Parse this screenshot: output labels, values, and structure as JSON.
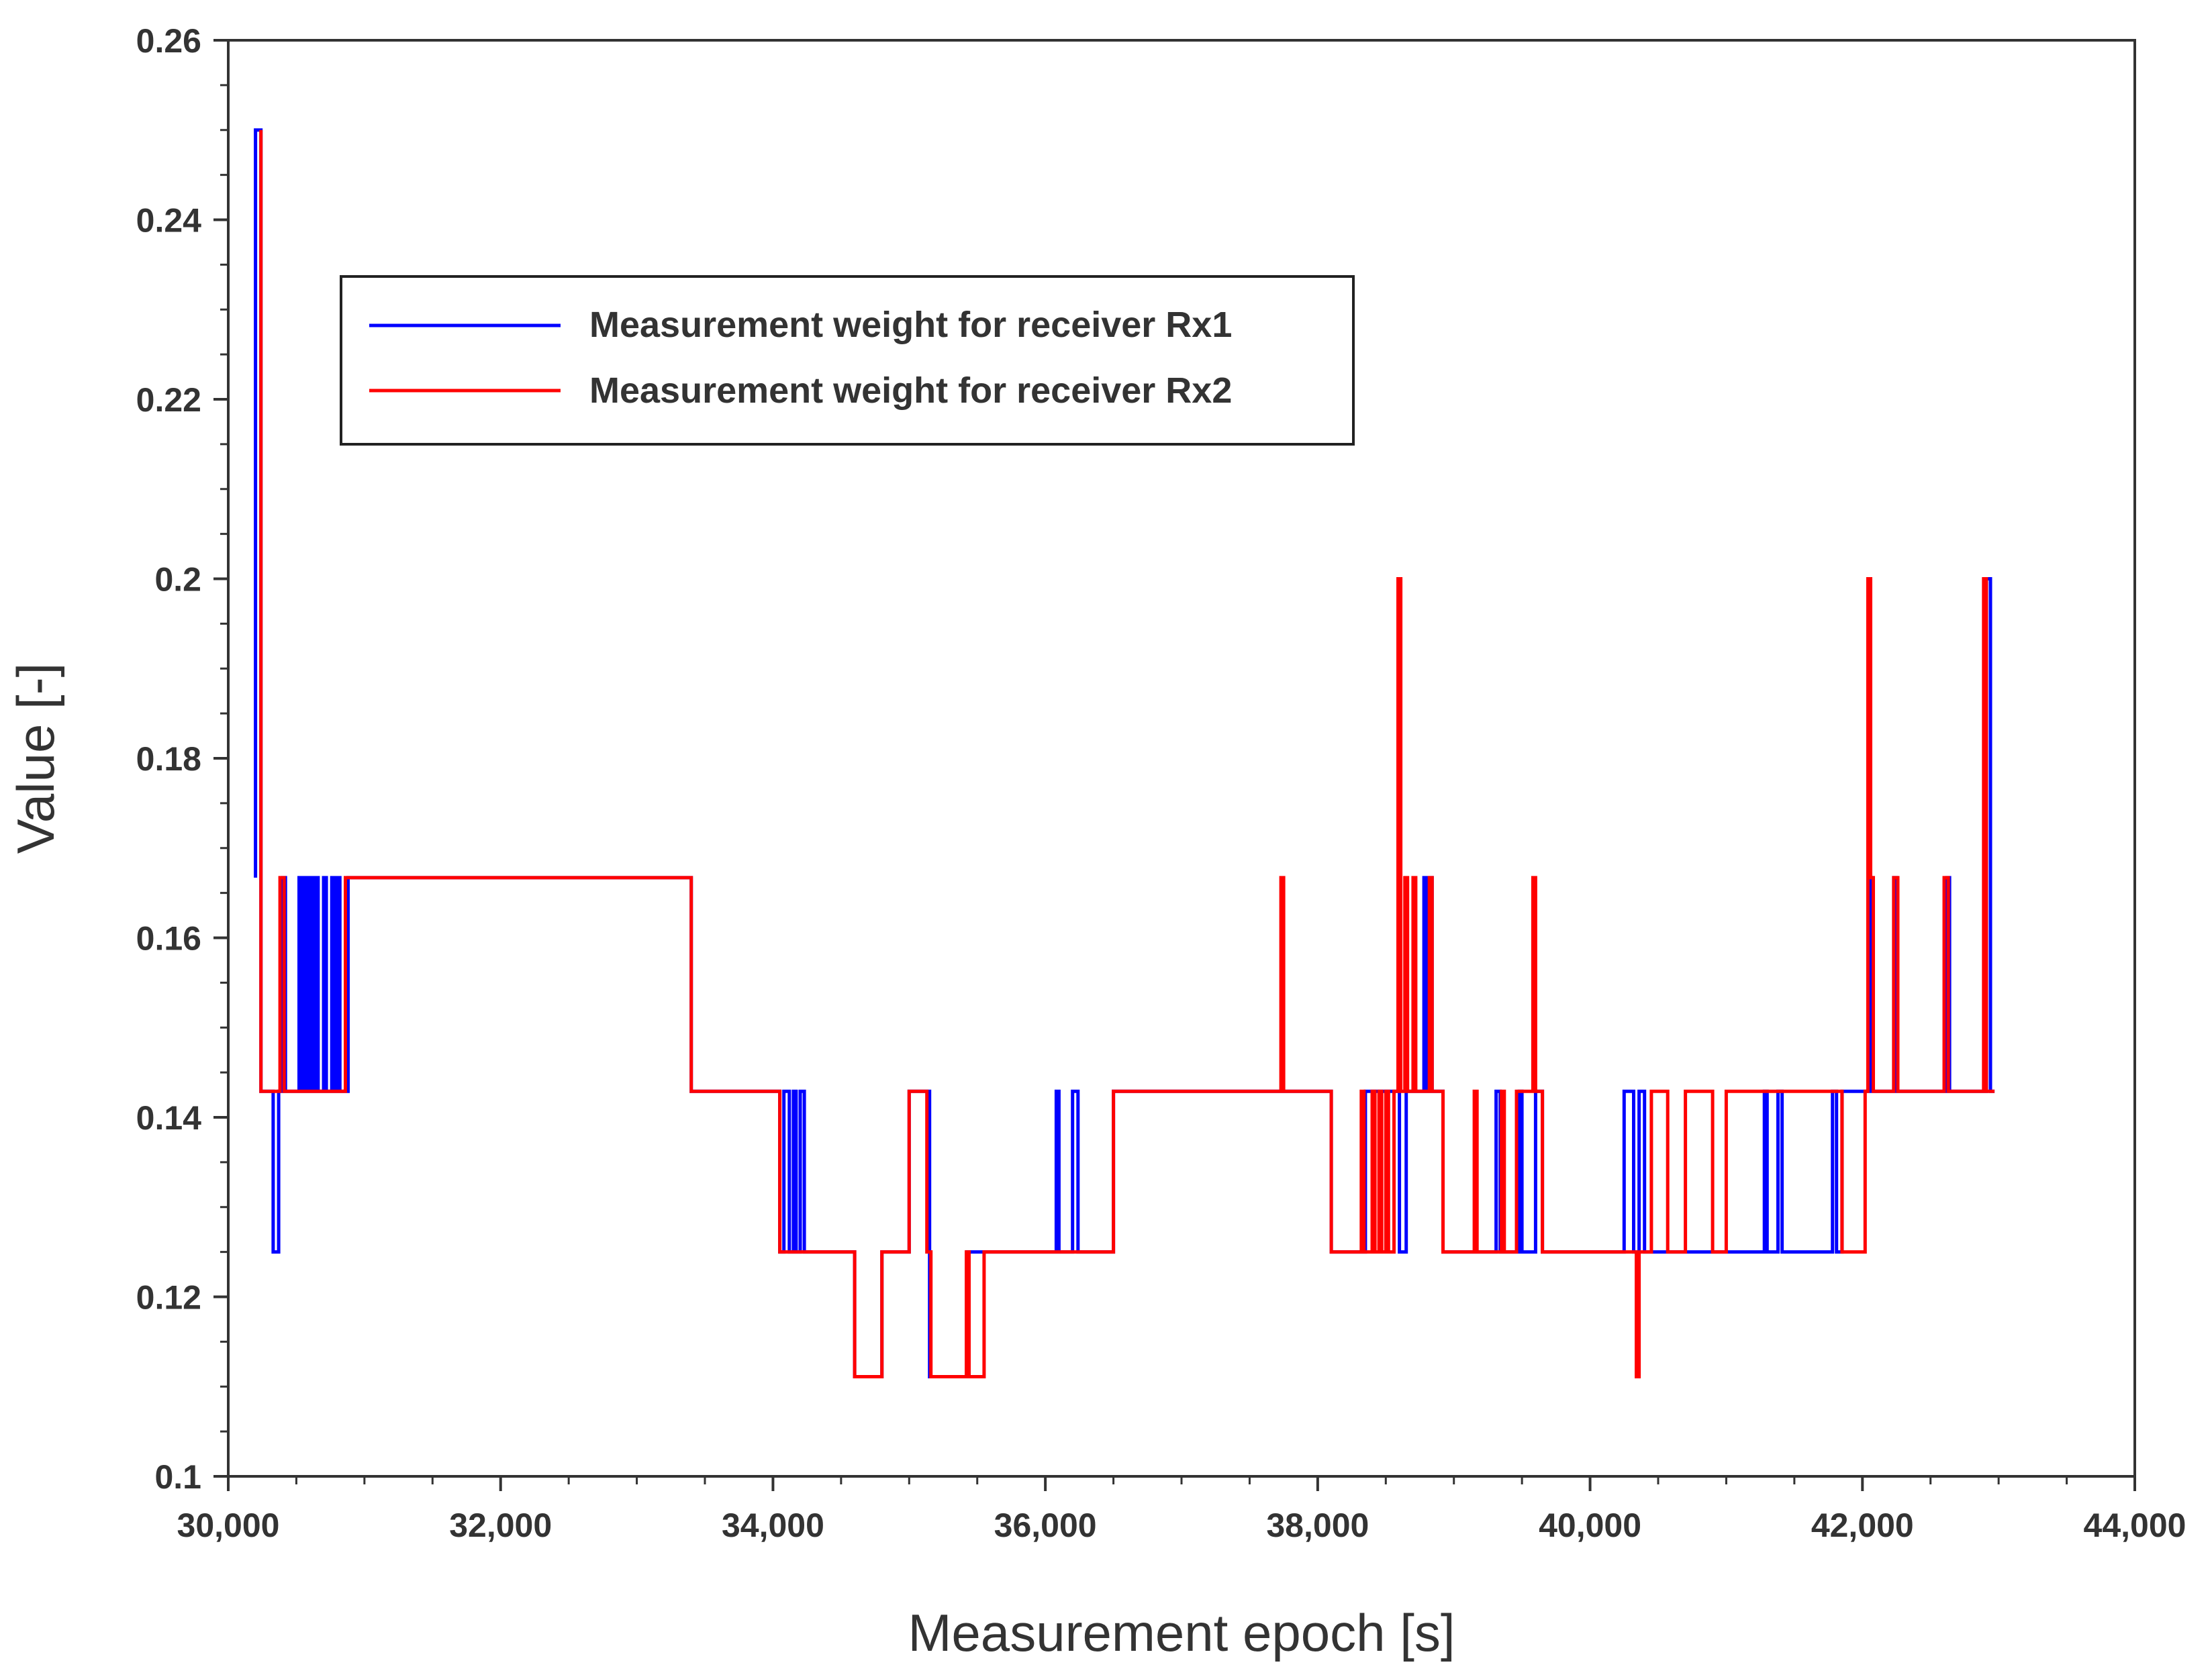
{
  "chart_data": {
    "type": "line",
    "title": "",
    "xlabel": "Measurement epoch [s]",
    "ylabel": "Value [-]",
    "xlim": [
      30000,
      44000
    ],
    "ylim": [
      0.1,
      0.26
    ],
    "x_ticks": [
      30000,
      32000,
      34000,
      36000,
      38000,
      40000,
      42000,
      44000
    ],
    "x_tick_labels": [
      "30,000",
      "32,000",
      "34,000",
      "36,000",
      "38,000",
      "40,000",
      "42,000",
      "44,000"
    ],
    "y_ticks": [
      0.1,
      0.12,
      0.14,
      0.16,
      0.18,
      0.2,
      0.22,
      0.24,
      0.26
    ],
    "y_tick_labels": [
      "0.1",
      "0.12",
      "0.14",
      "0.16",
      "0.18",
      "0.2",
      "0.22",
      "0.24",
      "0.26"
    ],
    "grid": false,
    "legend_position": "upper-left",
    "series": [
      {
        "name": "Measurement weight for receiver Rx1",
        "color": "#0000ff",
        "points": [
          [
            30200,
            0.1667
          ],
          [
            30200,
            0.25
          ],
          [
            30240,
            0.25
          ],
          [
            30240,
            0.1429
          ],
          [
            30330,
            0.1429
          ],
          [
            30330,
            0.125
          ],
          [
            30370,
            0.125
          ],
          [
            30370,
            0.1429
          ],
          [
            30400,
            0.1429
          ],
          [
            30400,
            0.1667
          ],
          [
            30420,
            0.1667
          ],
          [
            30420,
            0.1429
          ],
          [
            30520,
            0.1429
          ],
          [
            30520,
            0.1667
          ],
          [
            30540,
            0.1667
          ],
          [
            30540,
            0.1429
          ],
          [
            30560,
            0.1429
          ],
          [
            30560,
            0.1667
          ],
          [
            30580,
            0.1667
          ],
          [
            30580,
            0.1429
          ],
          [
            30600,
            0.1429
          ],
          [
            30600,
            0.1667
          ],
          [
            30620,
            0.1667
          ],
          [
            30620,
            0.1429
          ],
          [
            30640,
            0.1429
          ],
          [
            30640,
            0.1667
          ],
          [
            30660,
            0.1667
          ],
          [
            30660,
            0.1429
          ],
          [
            30700,
            0.1429
          ],
          [
            30700,
            0.1667
          ],
          [
            30720,
            0.1667
          ],
          [
            30720,
            0.1429
          ],
          [
            30760,
            0.1429
          ],
          [
            30760,
            0.1667
          ],
          [
            30780,
            0.1667
          ],
          [
            30780,
            0.1429
          ],
          [
            30800,
            0.1429
          ],
          [
            30800,
            0.1667
          ],
          [
            30820,
            0.1667
          ],
          [
            30820,
            0.1429
          ],
          [
            30880,
            0.1429
          ],
          [
            30880,
            0.1667
          ],
          [
            33400,
            0.1667
          ],
          [
            33400,
            0.1429
          ],
          [
            34050,
            0.1429
          ],
          [
            34050,
            0.125
          ],
          [
            34080,
            0.125
          ],
          [
            34080,
            0.1429
          ],
          [
            34120,
            0.1429
          ],
          [
            34120,
            0.125
          ],
          [
            34150,
            0.125
          ],
          [
            34150,
            0.1429
          ],
          [
            34170,
            0.1429
          ],
          [
            34170,
            0.125
          ],
          [
            34200,
            0.125
          ],
          [
            34200,
            0.1429
          ],
          [
            34230,
            0.1429
          ],
          [
            34230,
            0.125
          ],
          [
            34600,
            0.125
          ],
          [
            34600,
            0.1111
          ],
          [
            34800,
            0.1111
          ],
          [
            34800,
            0.125
          ],
          [
            35000,
            0.125
          ],
          [
            35000,
            0.1429
          ],
          [
            35150,
            0.1429
          ],
          [
            35150,
            0.1111
          ],
          [
            35430,
            0.1111
          ],
          [
            35430,
            0.125
          ],
          [
            36080,
            0.125
          ],
          [
            36080,
            0.1429
          ],
          [
            36100,
            0.1429
          ],
          [
            36100,
            0.125
          ],
          [
            36200,
            0.125
          ],
          [
            36200,
            0.1429
          ],
          [
            36240,
            0.1429
          ],
          [
            36240,
            0.125
          ],
          [
            36500,
            0.125
          ],
          [
            36500,
            0.1429
          ],
          [
            38100,
            0.1429
          ],
          [
            38100,
            0.125
          ],
          [
            38350,
            0.125
          ],
          [
            38350,
            0.1429
          ],
          [
            38600,
            0.1429
          ],
          [
            38600,
            0.125
          ],
          [
            38650,
            0.125
          ],
          [
            38650,
            0.1429
          ],
          [
            38780,
            0.1429
          ],
          [
            38780,
            0.1667
          ],
          [
            38800,
            0.1667
          ],
          [
            38800,
            0.1429
          ],
          [
            38820,
            0.1429
          ],
          [
            38820,
            0.1667
          ],
          [
            38840,
            0.1667
          ],
          [
            38840,
            0.1429
          ],
          [
            38920,
            0.1429
          ],
          [
            38920,
            0.125
          ],
          [
            39310,
            0.125
          ],
          [
            39310,
            0.1429
          ],
          [
            39340,
            0.1429
          ],
          [
            39340,
            0.125
          ],
          [
            39480,
            0.125
          ],
          [
            39480,
            0.1429
          ],
          [
            39500,
            0.1429
          ],
          [
            39500,
            0.125
          ],
          [
            39600,
            0.125
          ],
          [
            39600,
            0.1429
          ],
          [
            39650,
            0.1429
          ],
          [
            39650,
            0.125
          ],
          [
            40250,
            0.125
          ],
          [
            40250,
            0.1429
          ],
          [
            40320,
            0.1429
          ],
          [
            40320,
            0.125
          ],
          [
            40360,
            0.125
          ],
          [
            40360,
            0.1429
          ],
          [
            40400,
            0.1429
          ],
          [
            40400,
            0.125
          ],
          [
            41280,
            0.125
          ],
          [
            41280,
            0.1429
          ],
          [
            41300,
            0.1429
          ],
          [
            41300,
            0.125
          ],
          [
            41380,
            0.125
          ],
          [
            41380,
            0.1429
          ],
          [
            41410,
            0.1429
          ],
          [
            41410,
            0.125
          ],
          [
            41780,
            0.125
          ],
          [
            41780,
            0.1429
          ],
          [
            41810,
            0.1429
          ],
          [
            41810,
            0.125
          ],
          [
            41850,
            0.125
          ],
          [
            41850,
            0.1429
          ],
          [
            42050,
            0.1429
          ],
          [
            42050,
            0.1667
          ],
          [
            42070,
            0.1667
          ],
          [
            42070,
            0.1429
          ],
          [
            42230,
            0.1429
          ],
          [
            42230,
            0.1667
          ],
          [
            42250,
            0.1667
          ],
          [
            42250,
            0.1429
          ],
          [
            42620,
            0.1429
          ],
          [
            42620,
            0.1667
          ],
          [
            42640,
            0.1667
          ],
          [
            42640,
            0.1429
          ],
          [
            42910,
            0.1429
          ],
          [
            42910,
            0.2
          ],
          [
            42940,
            0.2
          ],
          [
            42940,
            0.1429
          ],
          [
            42970,
            0.1429
          ]
        ]
      },
      {
        "name": "Measurement weight for receiver Rx2",
        "color": "#ff0000",
        "points": [
          [
            30240,
            0.25
          ],
          [
            30240,
            0.1429
          ],
          [
            30380,
            0.1429
          ],
          [
            30380,
            0.1667
          ],
          [
            30410,
            0.1667
          ],
          [
            30410,
            0.1429
          ],
          [
            30860,
            0.1429
          ],
          [
            30860,
            0.1667
          ],
          [
            33400,
            0.1667
          ],
          [
            33400,
            0.1429
          ],
          [
            34050,
            0.1429
          ],
          [
            34050,
            0.125
          ],
          [
            34600,
            0.125
          ],
          [
            34600,
            0.1111
          ],
          [
            34800,
            0.1111
          ],
          [
            34800,
            0.125
          ],
          [
            35000,
            0.125
          ],
          [
            35000,
            0.1429
          ],
          [
            35130,
            0.1429
          ],
          [
            35130,
            0.125
          ],
          [
            35160,
            0.125
          ],
          [
            35160,
            0.1111
          ],
          [
            35420,
            0.1111
          ],
          [
            35420,
            0.125
          ],
          [
            35440,
            0.125
          ],
          [
            35440,
            0.1111
          ],
          [
            35550,
            0.1111
          ],
          [
            35550,
            0.125
          ],
          [
            36500,
            0.125
          ],
          [
            36500,
            0.1429
          ],
          [
            37730,
            0.1429
          ],
          [
            37730,
            0.1667
          ],
          [
            37750,
            0.1667
          ],
          [
            37750,
            0.1429
          ],
          [
            38100,
            0.1429
          ],
          [
            38100,
            0.125
          ],
          [
            38320,
            0.125
          ],
          [
            38320,
            0.1429
          ],
          [
            38340,
            0.1429
          ],
          [
            38340,
            0.125
          ],
          [
            38400,
            0.125
          ],
          [
            38400,
            0.1429
          ],
          [
            38420,
            0.1429
          ],
          [
            38420,
            0.125
          ],
          [
            38450,
            0.125
          ],
          [
            38450,
            0.1429
          ],
          [
            38470,
            0.1429
          ],
          [
            38470,
            0.125
          ],
          [
            38500,
            0.125
          ],
          [
            38500,
            0.1429
          ],
          [
            38520,
            0.1429
          ],
          [
            38520,
            0.125
          ],
          [
            38560,
            0.125
          ],
          [
            38560,
            0.1429
          ],
          [
            38590,
            0.1429
          ],
          [
            38590,
            0.2
          ],
          [
            38610,
            0.2
          ],
          [
            38610,
            0.1429
          ],
          [
            38640,
            0.1429
          ],
          [
            38640,
            0.1667
          ],
          [
            38660,
            0.1667
          ],
          [
            38660,
            0.1429
          ],
          [
            38700,
            0.1429
          ],
          [
            38700,
            0.1667
          ],
          [
            38720,
            0.1667
          ],
          [
            38720,
            0.1429
          ],
          [
            38820,
            0.1429
          ],
          [
            38820,
            0.1667
          ],
          [
            38840,
            0.1667
          ],
          [
            38840,
            0.1429
          ],
          [
            38920,
            0.1429
          ],
          [
            38920,
            0.125
          ],
          [
            39150,
            0.125
          ],
          [
            39150,
            0.1429
          ],
          [
            39170,
            0.1429
          ],
          [
            39170,
            0.125
          ],
          [
            39350,
            0.125
          ],
          [
            39350,
            0.1429
          ],
          [
            39370,
            0.1429
          ],
          [
            39370,
            0.125
          ],
          [
            39460,
            0.125
          ],
          [
            39460,
            0.1429
          ],
          [
            39580,
            0.1429
          ],
          [
            39580,
            0.1667
          ],
          [
            39600,
            0.1667
          ],
          [
            39600,
            0.1429
          ],
          [
            39650,
            0.1429
          ],
          [
            39650,
            0.125
          ],
          [
            40340,
            0.125
          ],
          [
            40340,
            0.1111
          ],
          [
            40360,
            0.1111
          ],
          [
            40360,
            0.125
          ],
          [
            40450,
            0.125
          ],
          [
            40450,
            0.1429
          ],
          [
            40570,
            0.1429
          ],
          [
            40570,
            0.125
          ],
          [
            40700,
            0.125
          ],
          [
            40700,
            0.1429
          ],
          [
            40900,
            0.1429
          ],
          [
            40900,
            0.125
          ],
          [
            41000,
            0.125
          ],
          [
            41000,
            0.1429
          ],
          [
            41850,
            0.1429
          ],
          [
            41850,
            0.125
          ],
          [
            42020,
            0.125
          ],
          [
            42020,
            0.1429
          ],
          [
            42040,
            0.1429
          ],
          [
            42040,
            0.2
          ],
          [
            42060,
            0.2
          ],
          [
            42060,
            0.1667
          ],
          [
            42080,
            0.1667
          ],
          [
            42080,
            0.1429
          ],
          [
            42230,
            0.1429
          ],
          [
            42230,
            0.1667
          ],
          [
            42260,
            0.1667
          ],
          [
            42260,
            0.1429
          ],
          [
            42600,
            0.1429
          ],
          [
            42600,
            0.1667
          ],
          [
            42630,
            0.1667
          ],
          [
            42630,
            0.1429
          ],
          [
            42890,
            0.1429
          ],
          [
            42890,
            0.2
          ],
          [
            42910,
            0.2
          ],
          [
            42910,
            0.1429
          ],
          [
            42970,
            0.1429
          ]
        ]
      }
    ]
  }
}
